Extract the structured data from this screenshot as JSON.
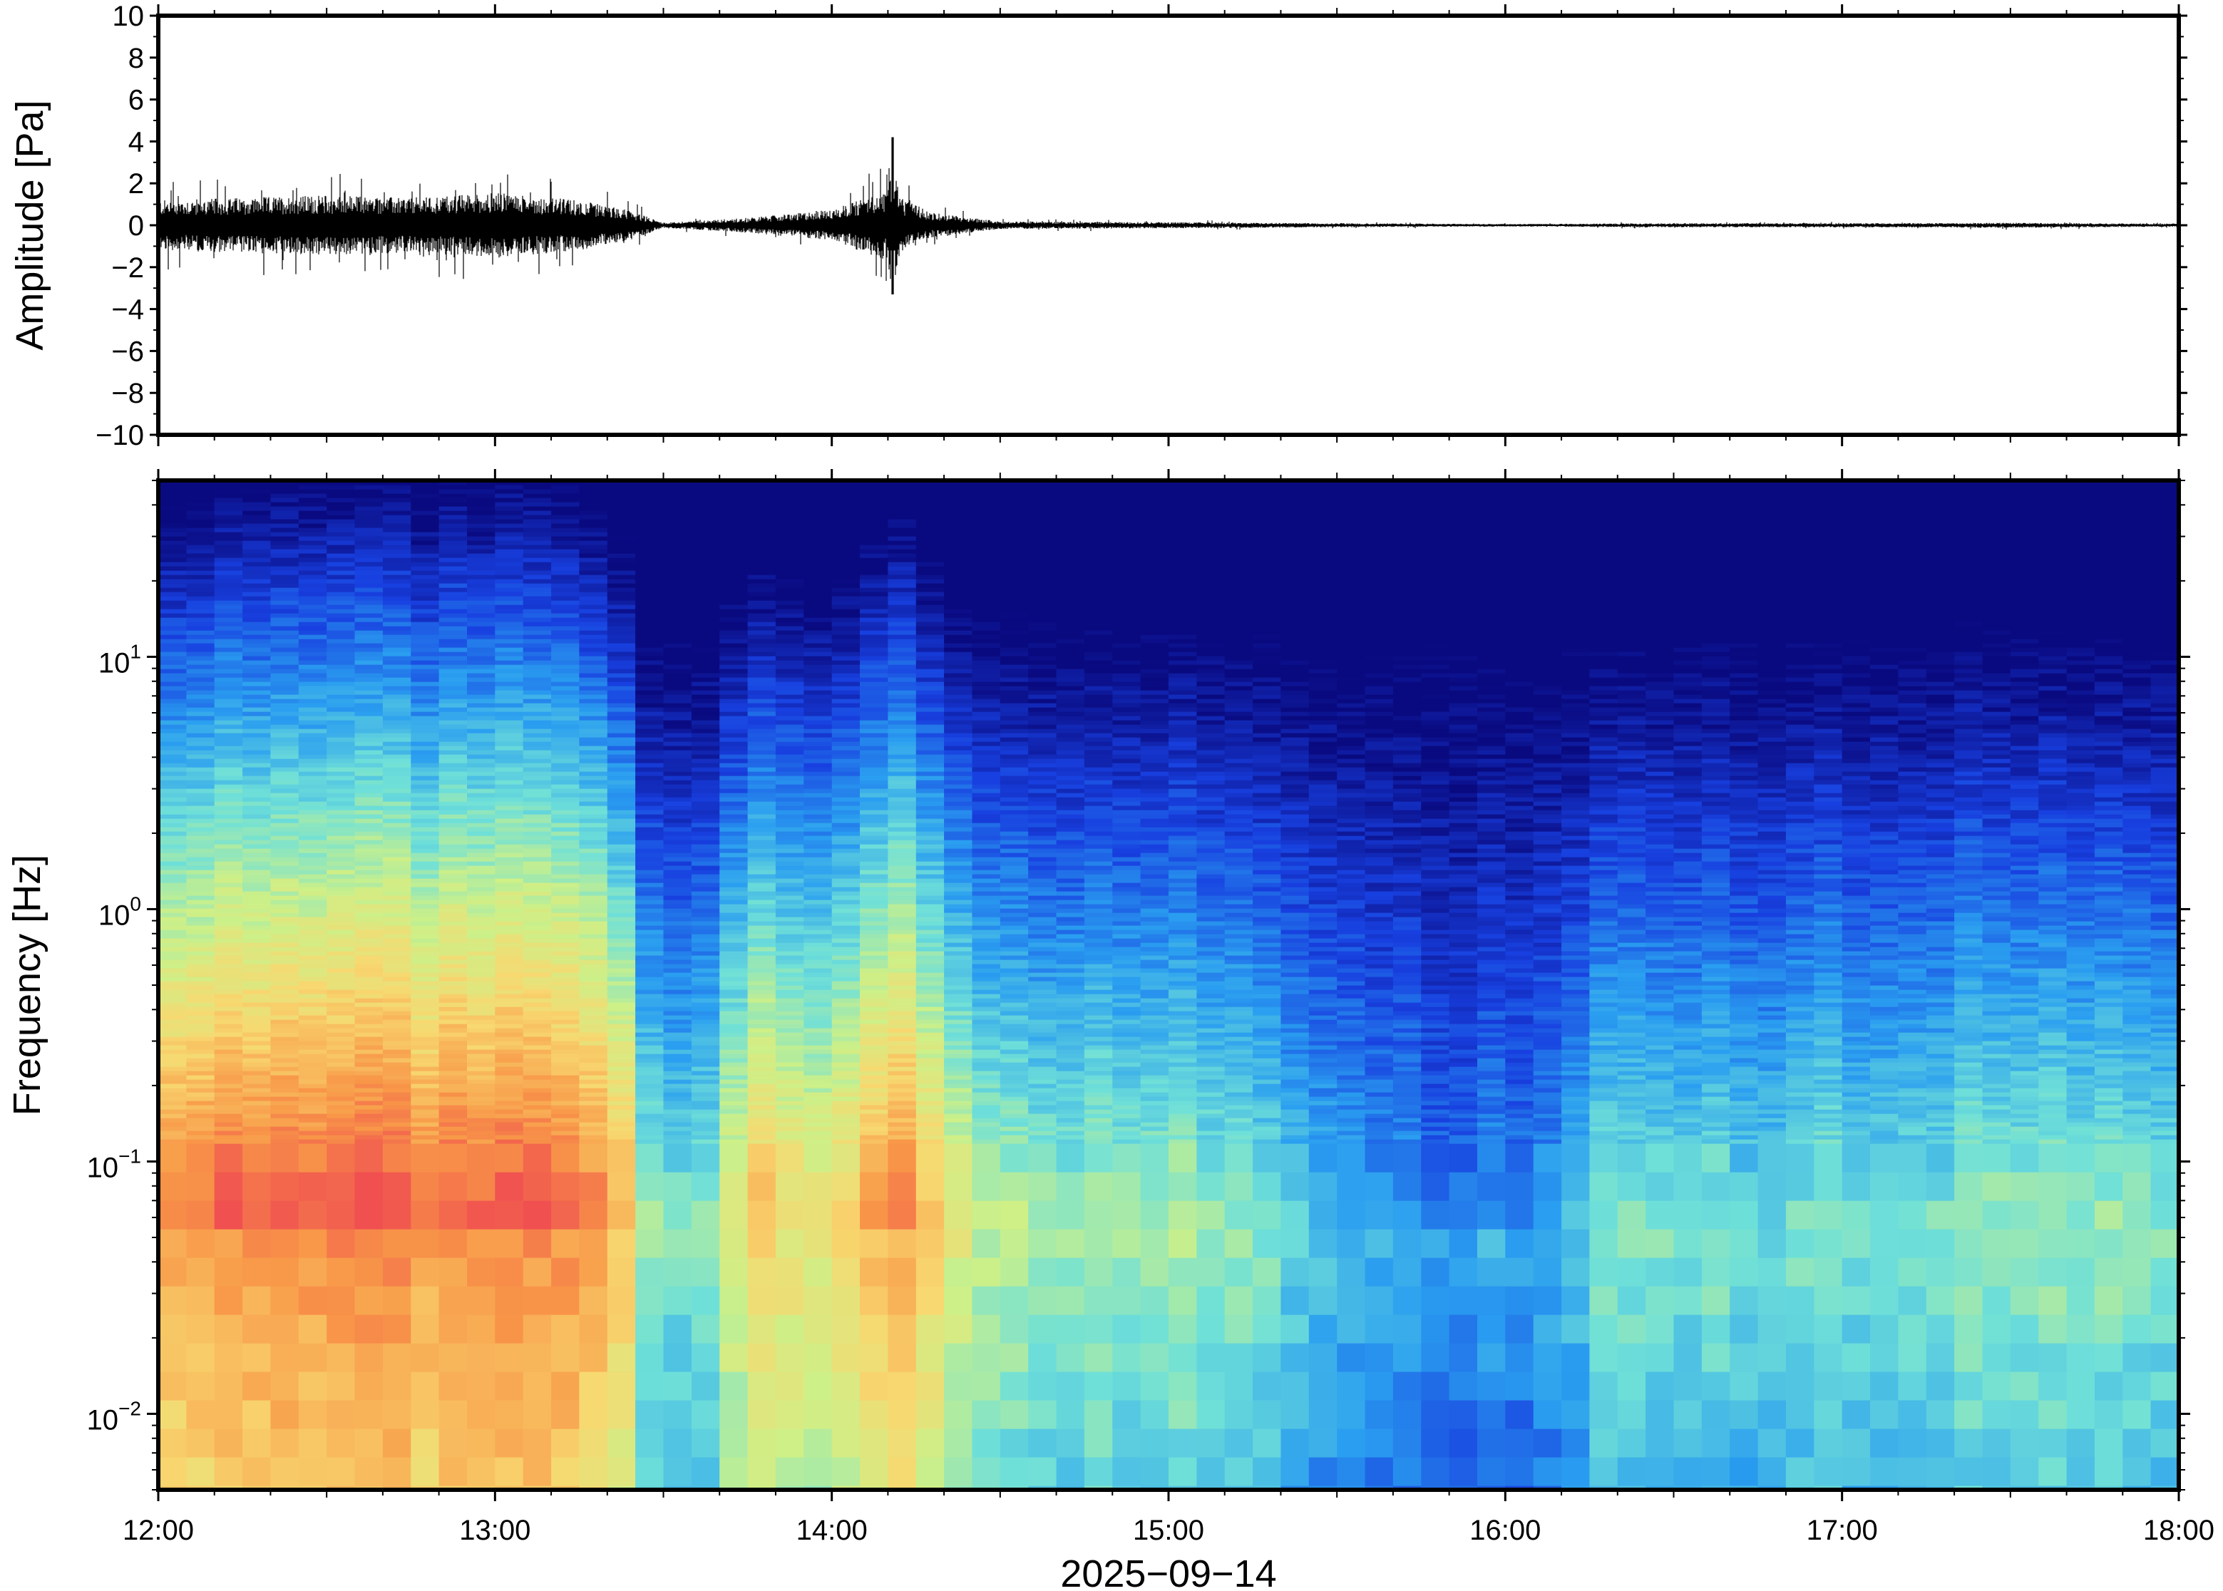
{
  "chart_data": [
    {
      "type": "line",
      "ylabel": "Amplitude [Pa]",
      "ylim": [
        -10,
        10
      ],
      "y_ticks": [
        "10",
        "8",
        "6",
        "4",
        "2",
        "0",
        "−2",
        "−4",
        "−6",
        "−8",
        "−10"
      ],
      "y_tick_values": [
        10,
        8,
        6,
        4,
        2,
        0,
        -2,
        -4,
        -6,
        -8,
        -10
      ],
      "x_range_hours": [
        12,
        18
      ],
      "grid": false,
      "series": [
        {
          "envelope_hours": [
            12.0,
            12.25,
            12.5,
            12.75,
            13.0,
            13.25,
            13.4,
            13.5,
            13.75,
            14.0,
            14.15,
            14.3,
            14.5,
            15.0,
            15.5,
            16.0,
            16.5,
            17.0,
            17.5,
            18.0
          ],
          "envelope_amplitude": [
            1.0,
            1.1,
            1.2,
            1.1,
            1.3,
            1.0,
            0.6,
            0.1,
            0.3,
            0.6,
            1.4,
            0.5,
            0.15,
            0.12,
            0.08,
            0.05,
            0.08,
            0.08,
            0.1,
            0.06
          ],
          "peak_time_hours": 14.18,
          "peak_max": 4.2,
          "peak_min": -3.3
        }
      ]
    },
    {
      "type": "heatmap",
      "ylabel": "Frequency [Hz]",
      "xlabel": "2025−09−14",
      "y_scale": "log",
      "ylim": [
        0.005,
        50
      ],
      "y_tick_values": [
        0.01,
        0.1,
        1,
        10
      ],
      "y_ticks": [
        {
          "base": "10",
          "exp": "−2"
        },
        {
          "base": "10",
          "exp": "−1"
        },
        {
          "base": "10",
          "exp": "0"
        },
        {
          "base": "10",
          "exp": "1"
        }
      ],
      "x_ticks": [
        "12:00",
        "13:00",
        "14:00",
        "15:00",
        "16:00",
        "17:00",
        "18:00"
      ],
      "x_tick_values": [
        12,
        13,
        14,
        15,
        16,
        17,
        18
      ],
      "colormap": [
        "#0a0a80",
        "#1840e0",
        "#2a9ef0",
        "#6fe0d8",
        "#cdf088",
        "#f8d870",
        "#f89848",
        "#f05050"
      ],
      "column_count": 72,
      "activity_profile_hours": [
        12.0,
        12.5,
        13.0,
        13.35,
        13.45,
        13.6,
        13.8,
        14.0,
        14.2,
        14.4,
        14.6,
        15.0,
        15.4,
        15.6,
        15.9,
        16.1,
        16.3,
        16.7,
        17.0,
        17.5,
        18.0
      ],
      "activity_profile_level": [
        0.92,
        0.95,
        0.95,
        0.9,
        0.5,
        0.42,
        0.75,
        0.68,
        0.9,
        0.6,
        0.52,
        0.5,
        0.4,
        0.28,
        0.22,
        0.3,
        0.42,
        0.42,
        0.44,
        0.48,
        0.44
      ],
      "grid": false
    }
  ]
}
